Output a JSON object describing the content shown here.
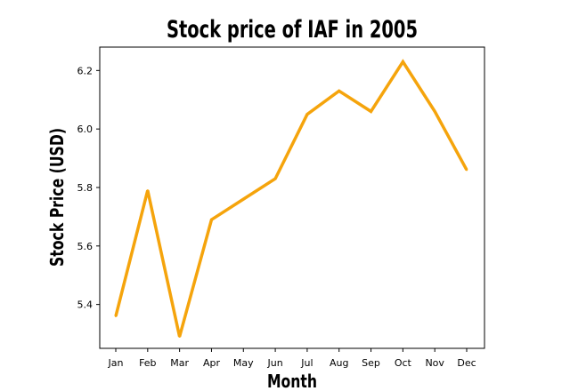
{
  "chart_data": {
    "type": "line",
    "title": "Stock price of IAF in 2005",
    "xlabel": "Month",
    "ylabel": "Stock Price (USD)",
    "categories": [
      "Jan",
      "Feb",
      "Mar",
      "Apr",
      "May",
      "Jun",
      "Jul",
      "Aug",
      "Sep",
      "Oct",
      "Nov",
      "Dec"
    ],
    "series": [
      {
        "values": [
          5.36,
          5.79,
          5.29,
          5.69,
          5.76,
          5.83,
          6.05,
          6.13,
          6.06,
          6.23,
          6.06,
          5.86
        ],
        "color": "#f5a40c"
      }
    ],
    "yticks": [
      "5.4",
      "5.6",
      "5.8",
      "6.0",
      "6.2"
    ],
    "ylim": [
      5.25,
      6.28
    ],
    "grid": false,
    "legend": false
  }
}
